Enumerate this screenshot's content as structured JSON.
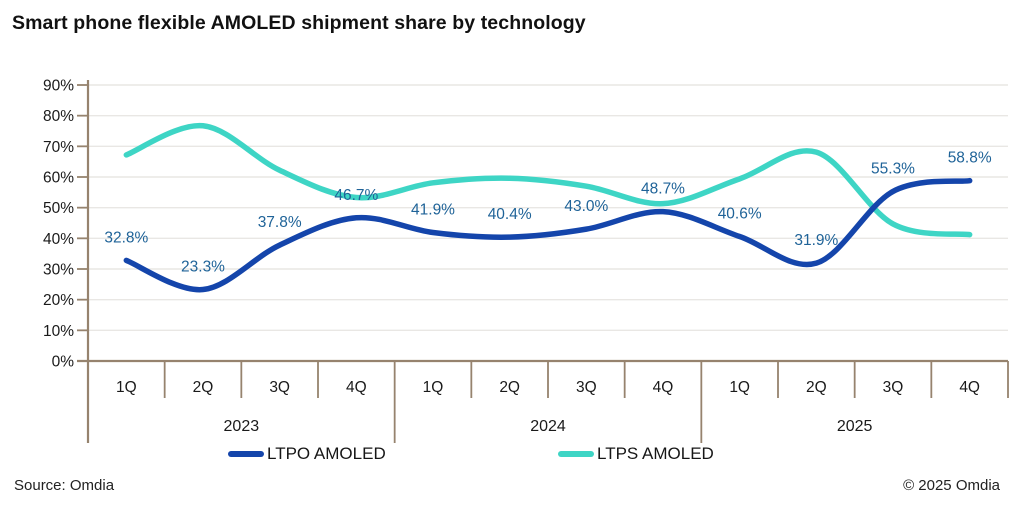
{
  "title": "Smart phone flexible AMOLED shipment share by technology",
  "footer": {
    "source": "Source: Omdia",
    "copyright": "© 2025 Omdia"
  },
  "legend": [
    {
      "label": "LTPO AMOLED",
      "color": "#1445ab"
    },
    {
      "label": "LTPS AMOLED",
      "color": "#3ed5c5"
    }
  ],
  "chart_data": {
    "type": "line",
    "title": "Smart phone flexible AMOLED shipment share by technology",
    "xlabel": "",
    "ylabel": "",
    "ylim": [
      0,
      90
    ],
    "ytick_step": 10,
    "ytick_format": "percent",
    "grid": true,
    "line_style": "smooth",
    "legend_position": "bottom",
    "quarters": [
      "1Q",
      "2Q",
      "3Q",
      "4Q",
      "1Q",
      "2Q",
      "3Q",
      "4Q",
      "1Q",
      "2Q",
      "3Q",
      "4Q"
    ],
    "year_groups": [
      {
        "label": "2023",
        "quarters": 4
      },
      {
        "label": "2024",
        "quarters": 4
      },
      {
        "label": "2025",
        "quarters": 4
      }
    ],
    "series": [
      {
        "name": "LTPS AMOLED",
        "color": "#3ed5c5",
        "show_point_labels": false,
        "values": [
          67.2,
          76.7,
          62.2,
          53.3,
          58.1,
          59.6,
          57.0,
          51.3,
          59.4,
          68.1,
          44.7,
          41.2
        ]
      },
      {
        "name": "LTPO AMOLED",
        "color": "#1445ab",
        "show_point_labels": true,
        "label_color": "#1f6398",
        "values": [
          32.8,
          23.3,
          37.8,
          46.7,
          41.9,
          40.4,
          43.0,
          48.7,
          40.6,
          31.9,
          55.3,
          58.8
        ]
      }
    ],
    "colors": {
      "axis": "#96836e",
      "gridline": "#e9e7e4",
      "tick_label": "#1a1a1a",
      "point_label": "#1f6398"
    }
  }
}
